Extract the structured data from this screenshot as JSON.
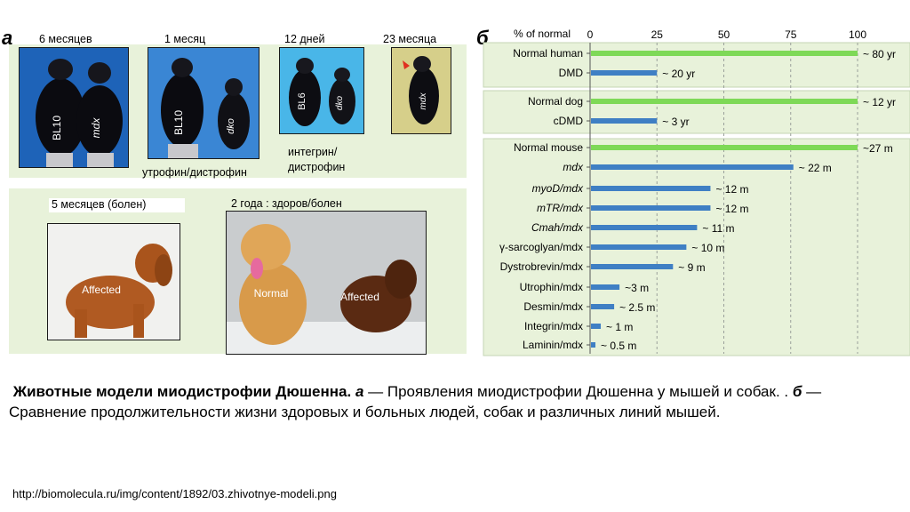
{
  "panel_a": {
    "letter": "а",
    "mice": [
      {
        "age": "6 месяцев",
        "labels": [
          "BL10",
          "mdx"
        ]
      },
      {
        "age": "1 месяц",
        "labels": [
          "BL10",
          "dko"
        ]
      },
      {
        "age": "12 дней",
        "labels": [
          "BL6",
          "dko"
        ]
      },
      {
        "age": "23 месяца",
        "labels": [
          "mdx"
        ]
      }
    ],
    "caption_utrophin": "утрофин/дистрофин",
    "caption_integrin_1": "интегрин/",
    "caption_integrin_2": "дистрофин",
    "dog1_label": "5 месяцев (болен)",
    "dog1_tag": "Affected",
    "dog2_label": "2 года : здоров/болен",
    "dog2_tag_normal": "Normal",
    "dog2_tag_affected": "Affected"
  },
  "chart_data": {
    "type": "bar",
    "panel_letter": "б",
    "xlabel": "% of normal",
    "xlim": [
      0,
      100
    ],
    "xticks": [
      0,
      25,
      50,
      75,
      100
    ],
    "groups": [
      "human",
      "dog",
      "mouse"
    ],
    "categories": [
      "Normal human",
      "DMD",
      "Normal dog",
      "cDMD",
      "Normal mouse",
      "mdx",
      "myoD/mdx",
      "mTR/mdx",
      "Cmah/mdx",
      "γ-sarcoglyan/mdx",
      "Dystrobrevin/mdx",
      "Utrophin/mdx",
      "Desmin/mdx",
      "Integrin/mdx",
      "Laminin/mdx"
    ],
    "italic": [
      false,
      false,
      false,
      false,
      false,
      true,
      true,
      true,
      true,
      false,
      false,
      false,
      false,
      false,
      false
    ],
    "values": [
      100,
      25,
      100,
      25,
      100,
      76,
      45,
      45,
      40,
      36,
      31,
      11,
      9,
      4,
      2
    ],
    "colors": [
      "#7ed957",
      "#3f7fc4",
      "#7ed957",
      "#3f7fc4",
      "#7ed957",
      "#3f7fc4",
      "#3f7fc4",
      "#3f7fc4",
      "#3f7fc4",
      "#3f7fc4",
      "#3f7fc4",
      "#3f7fc4",
      "#3f7fc4",
      "#3f7fc4",
      "#3f7fc4"
    ],
    "data_labels": [
      "~ 80 yr",
      "~ 20 yr",
      "~ 12 yr",
      "~ 3 yr",
      "~27 m",
      "~ 22 m",
      "~ 12 m",
      "~ 12 m",
      "~ 11 m",
      "~ 10 m",
      "~ 9 m",
      "~3 m",
      "~ 2.5 m",
      "~ 1 m",
      "~ 0.5 m"
    ]
  },
  "caption": {
    "title": "Животные модели миодистрофии Дюшенна.",
    "a_letter": "а",
    "a_text": " — Проявления миодистрофии Дюшенна у мышей и собак. . ",
    "b_letter": "б",
    "b_text": " — Сравнение продолжительности жизни здоровых и больных людей, собак и различных линий мышей."
  },
  "source_url": "http://biomolecula.ru/img/content/1892/03.zhivotnye-modeli.png"
}
